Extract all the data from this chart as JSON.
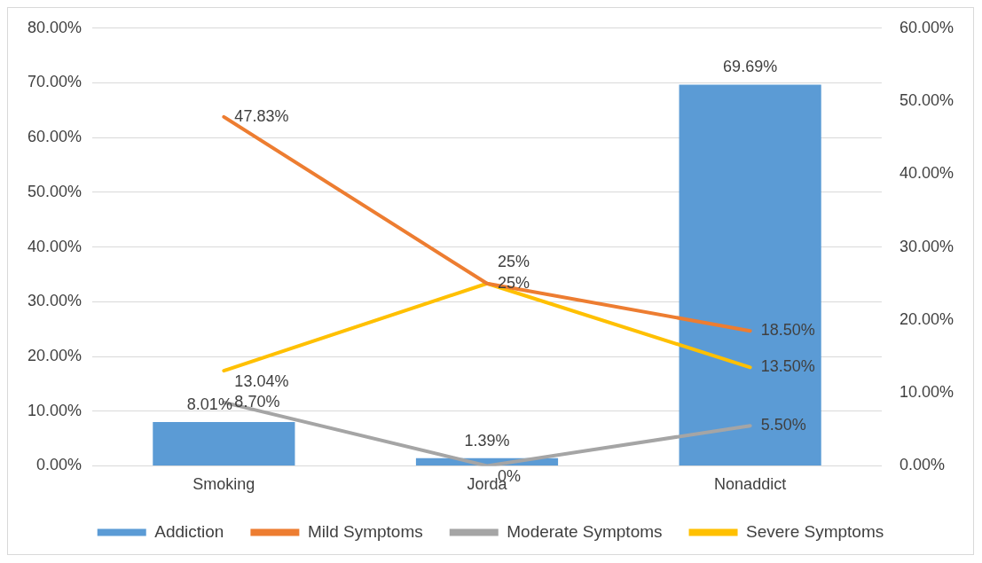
{
  "chart_data": {
    "type": "bar",
    "categories": [
      "Smoking",
      "Jorda",
      "Nonaddict"
    ],
    "series": [
      {
        "name": "Addiction",
        "color": "#5b9bd5",
        "values": [
          8.01,
          1.39,
          69.69
        ],
        "value_labels": [
          "8.01%",
          "1.39%",
          "69.69%"
        ]
      },
      {
        "name": "Mild Symptoms",
        "type": "line",
        "axis": "y2",
        "color": "#ed7d31",
        "values": [
          47.83,
          25,
          18.5
        ],
        "value_labels": [
          "47.83%",
          "25%",
          "18.50%"
        ]
      },
      {
        "name": "Moderate Symptoms",
        "type": "line",
        "axis": "y2",
        "color": "#a5a5a5",
        "values": [
          8.7,
          0,
          5.5
        ],
        "value_labels": [
          "8.70%",
          "0%",
          "5.50%"
        ]
      },
      {
        "name": "Severe Symptoms",
        "type": "line",
        "axis": "y2",
        "color": "#ffc000",
        "values": [
          13.04,
          25,
          13.5
        ],
        "value_labels": [
          "13.04%",
          "25%",
          "13.50%"
        ]
      }
    ],
    "ylim": [
      0,
      80
    ],
    "yticks": [
      {
        "value": 0,
        "label": "0.00%"
      },
      {
        "value": 10,
        "label": "10.00%"
      },
      {
        "value": 20,
        "label": "20.00%"
      },
      {
        "value": 30,
        "label": "30.00%"
      },
      {
        "value": 40,
        "label": "40.00%"
      },
      {
        "value": 50,
        "label": "50.00%"
      },
      {
        "value": 60,
        "label": "60.00%"
      },
      {
        "value": 70,
        "label": "70.00%"
      },
      {
        "value": 80,
        "label": "80.00%"
      }
    ],
    "y2lim": [
      0,
      60
    ],
    "y2ticks": [
      {
        "value": 0,
        "label": "0.00%"
      },
      {
        "value": 10,
        "label": "10.00%"
      },
      {
        "value": 20,
        "label": "20.00%"
      },
      {
        "value": 30,
        "label": "30.00%"
      },
      {
        "value": 40,
        "label": "40.00%"
      },
      {
        "value": 50,
        "label": "50.00%"
      },
      {
        "value": 60,
        "label": "60.00%"
      }
    ],
    "grid": "y",
    "legend": "bottom",
    "marker": "none",
    "line_style": "solid"
  }
}
